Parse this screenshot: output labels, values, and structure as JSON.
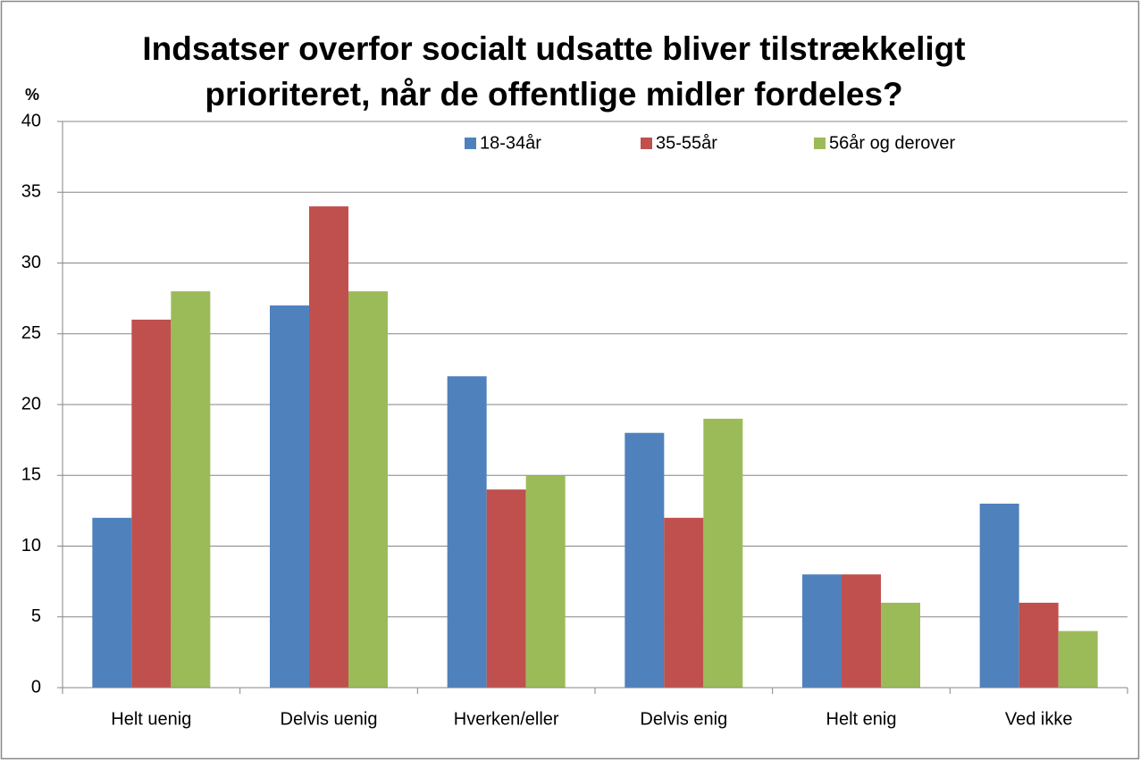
{
  "chart_data": {
    "type": "bar",
    "title": [
      "Indsatser overfor socialt udsatte bliver tilstrækkeligt",
      "prioriteret, når de offentlige midler fordeles?"
    ],
    "y_label": "%",
    "categories": [
      "Helt uenig",
      "Delvis uenig",
      "Hverken/eller",
      "Delvis enig",
      "Helt enig",
      "Ved ikke"
    ],
    "series": [
      {
        "name": "18-34år",
        "color": "#4f81bd",
        "values": [
          12,
          27,
          22,
          18,
          8,
          13
        ]
      },
      {
        "name": "35-55år",
        "color": "#c0504d",
        "values": [
          26,
          34,
          14,
          12,
          8,
          6
        ]
      },
      {
        "name": "56år og derover",
        "color": "#9bbb59",
        "values": [
          28,
          28,
          15,
          19,
          6,
          4
        ]
      }
    ],
    "ylim": [
      0,
      40
    ],
    "yticks": [
      0,
      5,
      10,
      15,
      20,
      25,
      30,
      35,
      40
    ],
    "grid": true,
    "legend": "top"
  }
}
